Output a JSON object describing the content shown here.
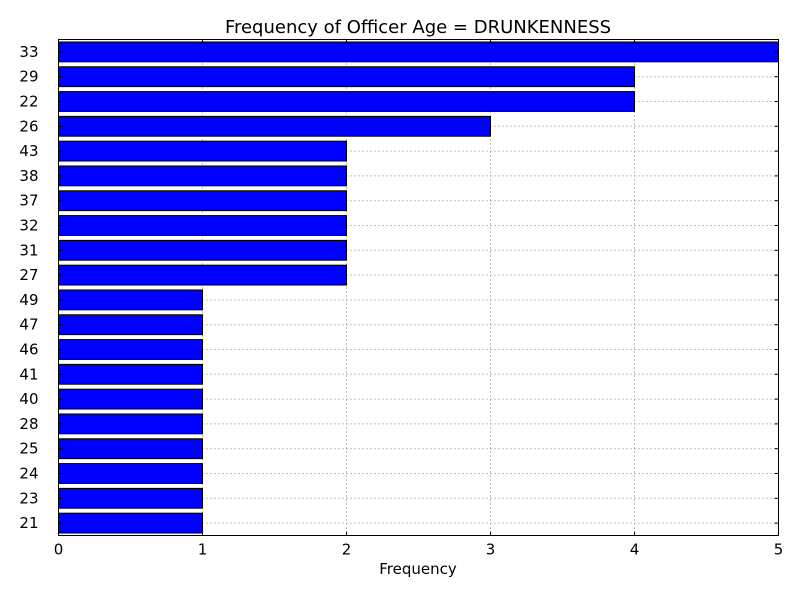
{
  "chart_data": {
    "type": "bar",
    "orientation": "horizontal",
    "title": "Frequency of Officer Age = DRUNKENNESS",
    "xlabel": "Frequency",
    "ylabel": "",
    "categories": [
      "33",
      "29",
      "22",
      "26",
      "43",
      "38",
      "37",
      "32",
      "31",
      "27",
      "49",
      "47",
      "46",
      "41",
      "40",
      "28",
      "25",
      "24",
      "23",
      "21"
    ],
    "values": [
      5,
      4,
      4,
      3,
      2,
      2,
      2,
      2,
      2,
      2,
      1,
      1,
      1,
      1,
      1,
      1,
      1,
      1,
      1,
      1
    ],
    "xlim": [
      0,
      5
    ],
    "xticks": [
      "0",
      "1",
      "2",
      "3",
      "4",
      "5"
    ],
    "grid": true,
    "bar_color": "#0000ff",
    "bar_edge_color": "#000000"
  }
}
